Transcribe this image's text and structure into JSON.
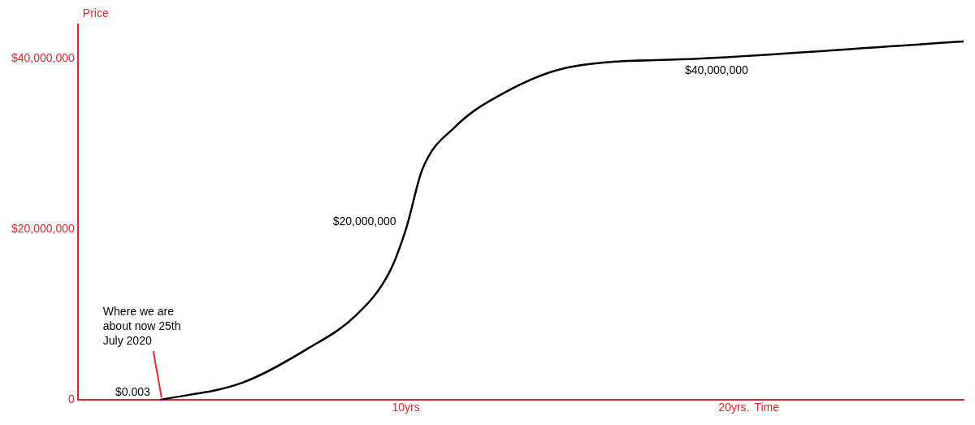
{
  "chart_data": {
    "type": "line",
    "xlabel": "Time",
    "ylabel": "Price",
    "x": [
      2.5,
      5,
      7,
      8.5,
      9.5,
      10,
      10.5,
      11.5,
      13,
      15,
      19,
      27
    ],
    "series": [
      {
        "color": "#000000",
        "values": [
          0,
          2000000,
          6000000,
          10000000,
          15000000,
          20000000,
          27000000,
          32000000,
          36000000,
          39000000,
          40000000,
          42000000
        ]
      }
    ],
    "xlim": [
      0,
      27
    ],
    "xticks": [
      {
        "value": 10,
        "label": "10yrs"
      },
      {
        "value": 20,
        "label": "20yrs."
      }
    ],
    "ylim": [
      0,
      44000000
    ],
    "yticks": [
      {
        "value": 0,
        "label": "0"
      },
      {
        "value": 20000000,
        "label": "$20,000,000"
      },
      {
        "value": 40000000,
        "label": "$40,000,000"
      }
    ],
    "annotations": [
      {
        "text": "$0.003",
        "x": 2.5,
        "y": 0
      },
      {
        "text": "$20,000,000",
        "x": 10,
        "y": 20000000
      },
      {
        "text": "$40,000,000",
        "x": 19,
        "y": 40000000
      },
      {
        "text": "Where we are about now 25th July 2020",
        "x": 2.5,
        "y": 0
      }
    ],
    "grid": false,
    "legend": false,
    "marker": "none",
    "line_style": "solid"
  }
}
